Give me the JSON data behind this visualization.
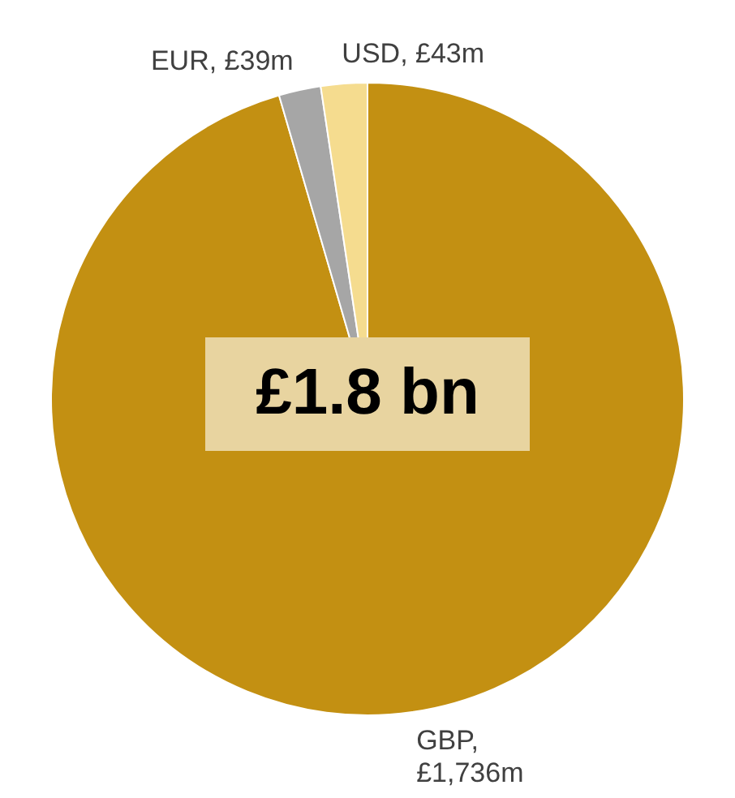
{
  "chart_data": {
    "type": "pie",
    "categories": [
      "GBP, £1,736m",
      "EUR, £39m",
      "USD, £43m"
    ],
    "values": [
      1736,
      39,
      43
    ],
    "colors": [
      "#c39012",
      "#a6a6a6",
      "#f5dc8f"
    ],
    "annotations": [
      "£1.8 bn"
    ],
    "legend": false
  }
}
